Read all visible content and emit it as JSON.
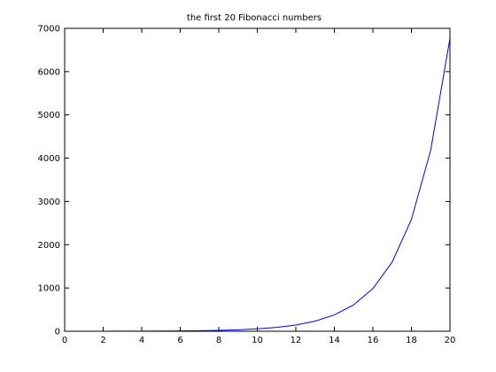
{
  "chart_data": {
    "type": "line",
    "title": "the first 20 Fibonacci numbers",
    "xlabel": "",
    "ylabel": "",
    "xlim": [
      0,
      20
    ],
    "ylim": [
      0,
      7000
    ],
    "xticks": [
      0,
      2,
      4,
      6,
      8,
      10,
      12,
      14,
      16,
      18,
      20
    ],
    "yticks": [
      0,
      1000,
      2000,
      3000,
      4000,
      5000,
      6000,
      7000
    ],
    "grid": false,
    "legend": "none",
    "series": [
      {
        "color": "#0000ff",
        "x": [
          1,
          2,
          3,
          4,
          5,
          6,
          7,
          8,
          9,
          10,
          11,
          12,
          13,
          14,
          15,
          16,
          17,
          18,
          19,
          20
        ],
        "y": [
          1,
          1,
          2,
          3,
          5,
          8,
          13,
          21,
          34,
          55,
          89,
          144,
          233,
          377,
          610,
          987,
          1597,
          2584,
          4181,
          6765
        ]
      }
    ]
  }
}
